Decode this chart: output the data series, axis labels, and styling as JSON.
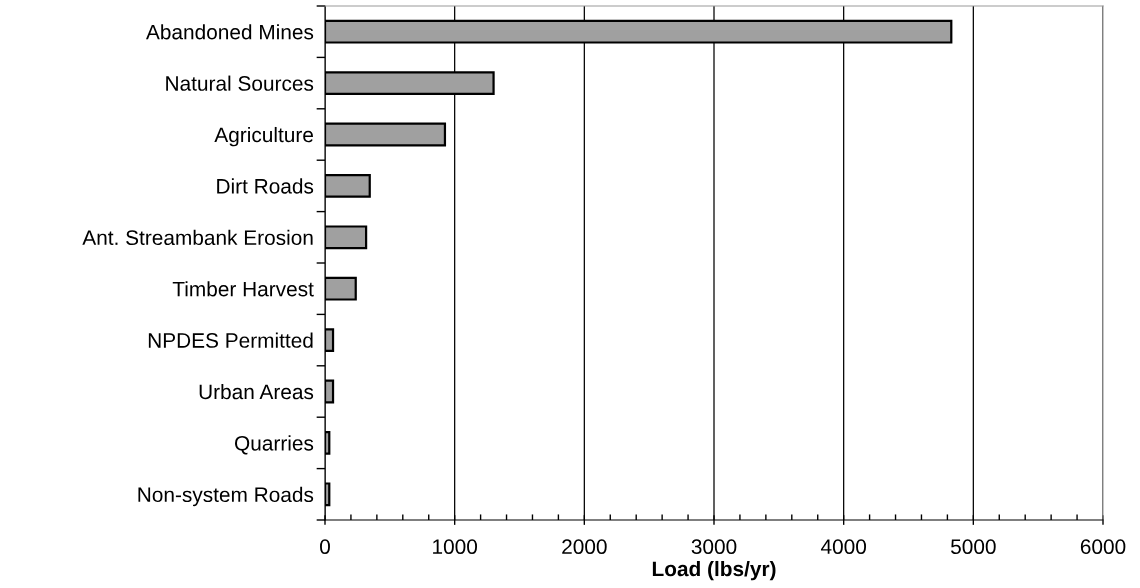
{
  "chart_data": {
    "type": "bar",
    "orientation": "horizontal",
    "xlabel": "Load (lbs/yr)",
    "categories": [
      "Abandoned Mines",
      "Natural Sources",
      "Agriculture",
      "Dirt Roads",
      "Ant. Streambank Erosion",
      "Timber Harvest",
      "NPDES Permitted",
      "Urban Areas",
      "Quarries",
      "Non-system Roads"
    ],
    "values": [
      4830,
      1300,
      925,
      345,
      317,
      237,
      62,
      62,
      33,
      33
    ],
    "color": "#a0a0a0",
    "xlim": [
      0,
      6000
    ],
    "xticks": [
      0,
      1000,
      2000,
      3000,
      4000,
      5000,
      6000
    ],
    "grid": "x"
  }
}
